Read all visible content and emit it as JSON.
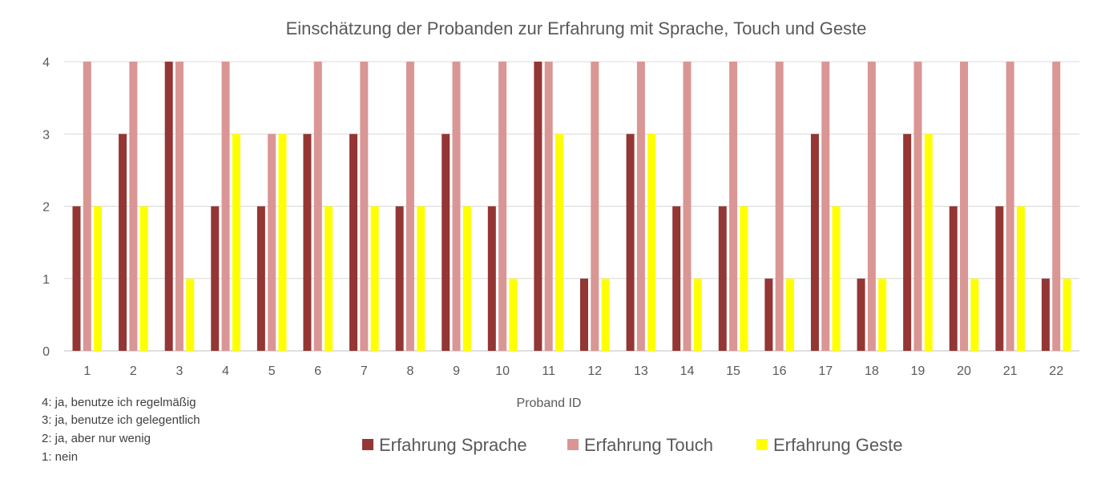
{
  "chart_data": {
    "type": "bar",
    "title": "Einschätzung der Probanden zur Erfahrung mit Sprache, Touch und Geste",
    "xlabel": "Proband ID",
    "ylabel": "",
    "ylim": [
      0,
      4
    ],
    "yticks": [
      "0",
      "1",
      "2",
      "3",
      "4"
    ],
    "grid": true,
    "legend_position": "bottom",
    "categories": [
      "1",
      "2",
      "3",
      "4",
      "5",
      "6",
      "7",
      "8",
      "9",
      "10",
      "11",
      "12",
      "13",
      "14",
      "15",
      "16",
      "17",
      "18",
      "19",
      "20",
      "21",
      "22"
    ],
    "series": [
      {
        "name": "Erfahrung Sprache",
        "color": "#943634",
        "values": [
          2,
          3,
          4,
          2,
          2,
          3,
          3,
          2,
          3,
          2,
          4,
          1,
          3,
          2,
          2,
          1,
          3,
          1,
          3,
          2,
          2,
          1
        ]
      },
      {
        "name": "Erfahrung Touch",
        "color": "#d99694",
        "values": [
          4,
          4,
          4,
          4,
          3,
          4,
          4,
          4,
          4,
          4,
          4,
          4,
          4,
          4,
          4,
          4,
          4,
          4,
          4,
          4,
          4,
          4
        ]
      },
      {
        "name": "Erfahrung Geste",
        "color": "#ffff00",
        "values": [
          2,
          2,
          1,
          3,
          3,
          2,
          2,
          2,
          2,
          1,
          3,
          1,
          3,
          1,
          2,
          1,
          2,
          1,
          3,
          1,
          2,
          1
        ]
      }
    ]
  },
  "notes": [
    "4: ja, benutze ich regelmäßig",
    "3: ja, benutze ich gelegentlich",
    "2: ja, aber nur wenig",
    "1: nein"
  ]
}
